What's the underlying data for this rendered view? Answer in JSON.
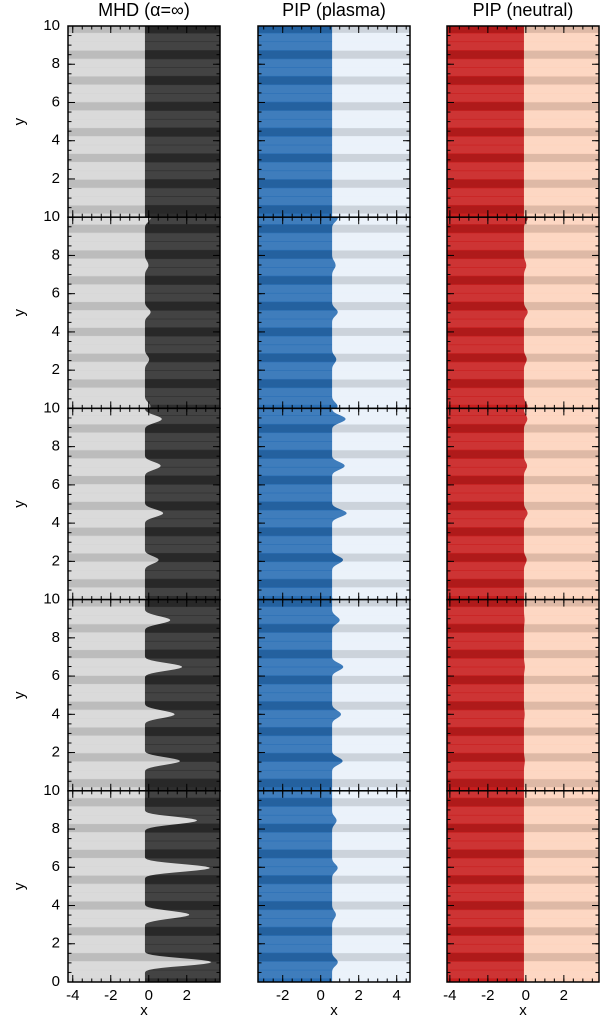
{
  "chart_data": {
    "type": "heatmap-grid",
    "rows": 5,
    "ylabel": "y",
    "ylim": [
      0,
      10
    ],
    "yticks": [
      0,
      2,
      4,
      6,
      8,
      10
    ],
    "columns": [
      {
        "title": "MHD (α=∞)",
        "xlabel": "x",
        "xlim": [
          -4.25,
          3.75
        ],
        "xticks": [
          -4,
          -2,
          0,
          2
        ],
        "colors": [
          "#d6d6d6",
          "#2e2e2e"
        ]
      },
      {
        "title": "PIP (plasma)",
        "xlabel": "x",
        "xlim": [
          -3.3,
          4.7
        ],
        "xticks": [
          -2,
          0,
          2,
          4
        ],
        "colors": [
          "#2a6fb5",
          "#e9f1fa"
        ]
      },
      {
        "title": "PIP (neutral)",
        "xlabel": "x",
        "xlim": [
          -4.15,
          3.85
        ],
        "xticks": [
          -4,
          -2,
          0,
          2
        ],
        "colors": [
          "#c81e1e",
          "#fdd3bd"
        ]
      }
    ]
  }
}
